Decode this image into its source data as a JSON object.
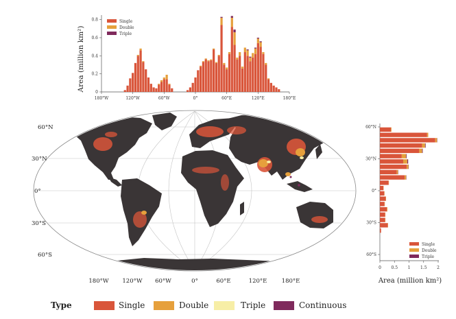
{
  "colors": {
    "single": "#d9553a",
    "double": "#e6a03c",
    "triple": "#f7eea6",
    "continuous": "#7f2a5c",
    "land": "#3a3536",
    "ocean": "#ffffff",
    "grid": "#bdbdbd"
  },
  "map": {
    "lat_labels": [
      "60°N",
      "30°N",
      "0°",
      "30°S",
      "60°S"
    ],
    "lon_labels": [
      "180°W",
      "120°W",
      "60°W",
      "0°",
      "60°E",
      "120°E",
      "180°E"
    ]
  },
  "legend": {
    "title": "Type",
    "items": [
      {
        "label": "Single",
        "key": "single"
      },
      {
        "label": "Double",
        "key": "double"
      },
      {
        "label": "Triple",
        "key": "triple"
      },
      {
        "label": "Continuous",
        "key": "continuous"
      }
    ]
  },
  "chart_data": [
    {
      "type": "bar",
      "stacked": true,
      "orientation": "vertical",
      "ylabel": "Area (million km²)",
      "ylim": [
        0,
        0.85
      ],
      "yticks": [
        "0",
        "0.2",
        "0.4",
        "0.6",
        "0.8"
      ],
      "xticks": [
        "180°W",
        "120°W",
        "60°W",
        "0°",
        "60°E",
        "120°E",
        "180°E"
      ],
      "legend_items": [
        "Single",
        "Double",
        "Triple"
      ],
      "legend_position": "top-left",
      "x": [
        -135,
        -130,
        -125,
        -120,
        -115,
        -110,
        -105,
        -100,
        -95,
        -90,
        -85,
        -80,
        -75,
        -70,
        -65,
        -60,
        -55,
        -50,
        -45,
        -15,
        -10,
        -5,
        0,
        5,
        10,
        15,
        20,
        25,
        30,
        35,
        40,
        45,
        50,
        55,
        60,
        65,
        70,
        75,
        80,
        85,
        90,
        95,
        100,
        105,
        110,
        115,
        120,
        125,
        130,
        135,
        140,
        145,
        150,
        155,
        160
      ],
      "series": [
        {
          "name": "Single",
          "values": [
            0.02,
            0.07,
            0.15,
            0.21,
            0.32,
            0.4,
            0.46,
            0.33,
            0.25,
            0.16,
            0.09,
            0.05,
            0.04,
            0.08,
            0.11,
            0.14,
            0.14,
            0.08,
            0.04,
            0.02,
            0.05,
            0.1,
            0.16,
            0.24,
            0.28,
            0.33,
            0.36,
            0.34,
            0.35,
            0.47,
            0.32,
            0.4,
            0.74,
            0.3,
            0.25,
            0.42,
            0.72,
            0.52,
            0.36,
            0.4,
            0.26,
            0.44,
            0.4,
            0.34,
            0.38,
            0.42,
            0.54,
            0.5,
            0.42,
            0.3,
            0.14,
            0.1,
            0.07,
            0.05,
            0.03
          ]
        },
        {
          "name": "Double",
          "values": [
            0,
            0,
            0,
            0,
            0,
            0.01,
            0.02,
            0.01,
            0,
            0,
            0,
            0,
            0,
            0.01,
            0.02,
            0.02,
            0.05,
            0.01,
            0,
            0,
            0,
            0,
            0,
            0,
            0.01,
            0.01,
            0.01,
            0.01,
            0.01,
            0.01,
            0.01,
            0.01,
            0.08,
            0.02,
            0.02,
            0.02,
            0.1,
            0.14,
            0.02,
            0.04,
            0.02,
            0.05,
            0.06,
            0.04,
            0.05,
            0.06,
            0.05,
            0.05,
            0.02,
            0.02,
            0.01,
            0,
            0,
            0,
            0
          ]
        },
        {
          "name": "Triple",
          "values": [
            0,
            0,
            0,
            0,
            0,
            0,
            0,
            0,
            0,
            0,
            0,
            0,
            0,
            0,
            0,
            0,
            0,
            0,
            0,
            0,
            0,
            0,
            0,
            0,
            0,
            0,
            0,
            0,
            0,
            0,
            0,
            0,
            0.01,
            0,
            0,
            0,
            0.02,
            0.03,
            0,
            0,
            0,
            0,
            0.01,
            0.01,
            0,
            0.01,
            0.01,
            0.01,
            0,
            0,
            0,
            0,
            0,
            0,
            0
          ]
        }
      ]
    },
    {
      "type": "bar",
      "stacked": true,
      "orientation": "horizontal",
      "xlabel": "Area (million km²)",
      "xlim": [
        0,
        2
      ],
      "xticks": [
        "0",
        "0.5",
        "1",
        "1.5",
        "2"
      ],
      "yticks": [
        "60°N",
        "30°N",
        "0°",
        "30°S",
        "60°S"
      ],
      "legend_items": [
        "Single",
        "Double",
        "Triple"
      ],
      "legend_position": "bottom-right",
      "lat": [
        57.5,
        52.5,
        47.5,
        42.5,
        37.5,
        32.5,
        27.5,
        22.5,
        17.5,
        12.5,
        7.5,
        2.5,
        -2.5,
        -7.5,
        -12.5,
        -17.5,
        -22.5,
        -27.5,
        -32.5,
        -37.5
      ],
      "series": [
        {
          "name": "Single",
          "values": [
            0.38,
            1.62,
            1.9,
            1.45,
            1.35,
            0.75,
            0.8,
            0.92,
            0.58,
            0.85,
            0.3,
            0.12,
            0.15,
            0.2,
            0.16,
            0.24,
            0.18,
            0.18,
            0.27,
            0.04
          ]
        },
        {
          "name": "Double",
          "values": [
            0.02,
            0.04,
            0.06,
            0.1,
            0.1,
            0.15,
            0.14,
            0.06,
            0.04,
            0.05,
            0.01,
            0.01,
            0.01,
            0.01,
            0.01,
            0.02,
            0.01,
            0.01,
            0.01,
            0
          ]
        },
        {
          "name": "Triple",
          "values": [
            0,
            0,
            0.01,
            0.02,
            0.02,
            0.02,
            0.03,
            0.01,
            0.01,
            0.01,
            0,
            0,
            0,
            0,
            0,
            0,
            0,
            0,
            0,
            0
          ]
        }
      ]
    }
  ]
}
